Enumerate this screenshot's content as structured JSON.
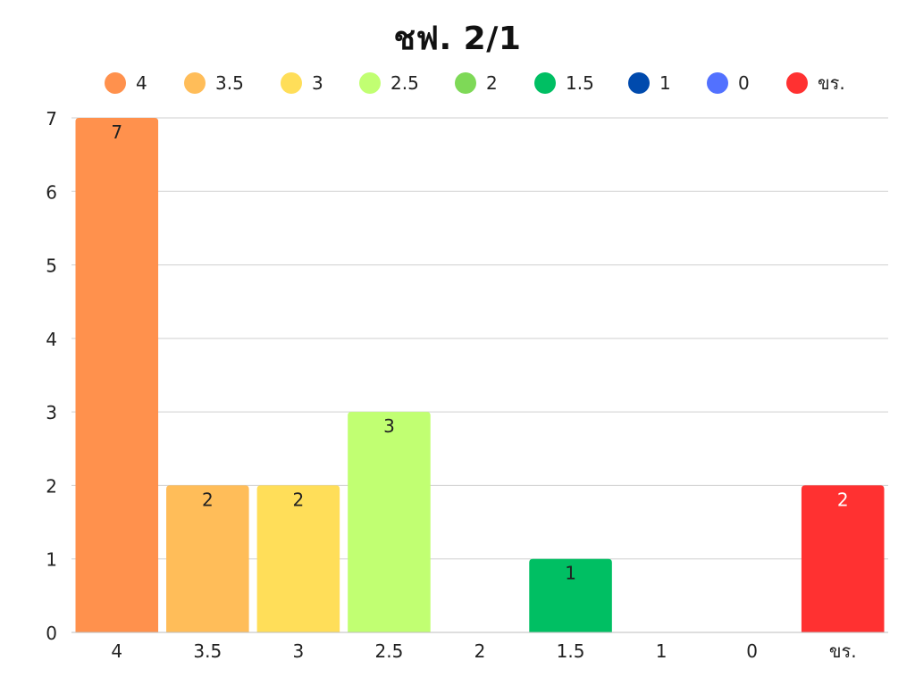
{
  "chart_data": {
    "type": "bar",
    "title": "ชฟ. 2/1",
    "xlabel": "",
    "ylabel": "",
    "categories": [
      "4",
      "3.5",
      "3",
      "2.5",
      "2",
      "1.5",
      "1",
      "0",
      "ขร."
    ],
    "values": [
      7,
      2,
      2,
      3,
      0,
      1,
      0,
      0,
      2
    ],
    "colors": [
      "#FF914D",
      "#FFBD59",
      "#FFDE59",
      "#C1FF72",
      "#7ED957",
      "#00BF63",
      "#004AAD",
      "#5271FF",
      "#FF3131"
    ],
    "ylim": [
      0,
      7
    ],
    "yticks": [
      0,
      1,
      2,
      3,
      4,
      5,
      6,
      7
    ],
    "grid": true,
    "legend": "top",
    "data_labels": true
  }
}
